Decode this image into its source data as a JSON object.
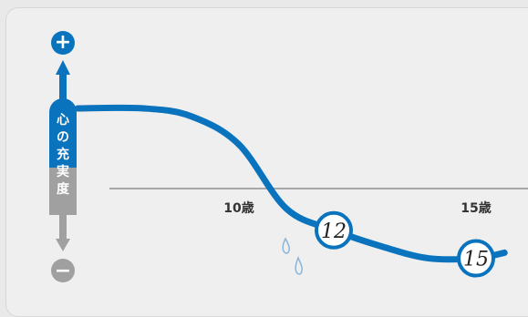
{
  "chart_data": {
    "type": "line",
    "y_axis": {
      "label": "心の充実度",
      "positive": "+",
      "negative": "−"
    },
    "x_axis": {
      "unit": "歳",
      "tick_labels": [
        "10歳",
        "15歳"
      ],
      "ticks": [
        10,
        15
      ]
    },
    "series": [
      {
        "color": "#0a73be",
        "points": [
          [
            6.6,
            1.0
          ],
          [
            8.0,
            1.0
          ],
          [
            9.0,
            0.9
          ],
          [
            10.0,
            0.55
          ],
          [
            11.0,
            -0.25
          ],
          [
            12.0,
            -0.52
          ],
          [
            13.0,
            -0.72
          ],
          [
            14.0,
            -0.87
          ],
          [
            15.0,
            -0.87
          ],
          [
            15.6,
            -0.8
          ]
        ]
      }
    ],
    "annotations": [
      {
        "text": "12",
        "x": 12.0,
        "y": -0.52
      },
      {
        "text": "15",
        "x": 15.0,
        "y": -0.87
      }
    ],
    "decorations": [
      "teardrop-icon",
      "teardrop-icon"
    ]
  },
  "colors": {
    "accent": "#0a73be",
    "axis_negative": "#a0a0a0",
    "baseline": "#a7a7a7",
    "text": "#333333"
  }
}
